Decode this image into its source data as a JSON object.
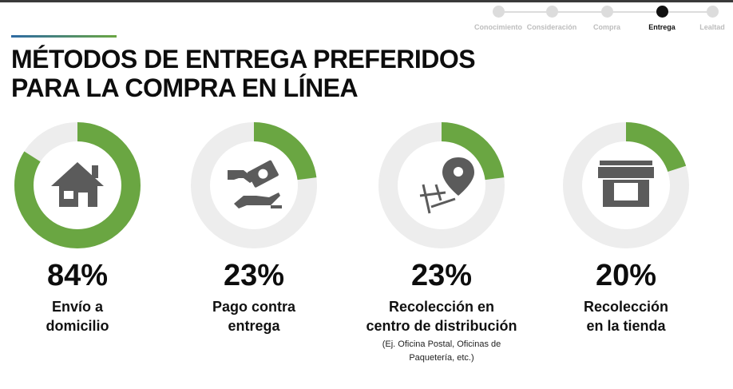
{
  "stepper": {
    "steps": [
      {
        "label": "Conocimiento",
        "active": false
      },
      {
        "label": "Consideración",
        "active": false
      },
      {
        "label": "Compra",
        "active": false
      },
      {
        "label": "Entrega",
        "active": true
      },
      {
        "label": "Lealtad",
        "active": false
      }
    ]
  },
  "title": {
    "line1": "MÉTODOS DE ENTREGA PREFERIDOS",
    "line2": "PARA LA COMPRA EN LÍNEA"
  },
  "colors": {
    "accent": "#6aa642",
    "track": "#ededed",
    "icon": "#5b5b5b"
  },
  "metrics": [
    {
      "value": 84,
      "percent_label": "84%",
      "label_lines": [
        "Envío a",
        "domicilio"
      ],
      "icon": "house-icon"
    },
    {
      "value": 23,
      "percent_label": "23%",
      "label_lines": [
        "Pago contra",
        "entrega"
      ],
      "icon": "cash-payment-icon"
    },
    {
      "value": 23,
      "percent_label": "23%",
      "label_lines": [
        "Recolección en",
        "centro de distribución"
      ],
      "note_lines": [
        "(Ej. Oficina Postal, Oficinas de",
        "Paquetería, etc.)"
      ],
      "icon": "map-pin-icon"
    },
    {
      "value": 20,
      "percent_label": "20%",
      "label_lines": [
        "Recolección",
        "en la tienda"
      ],
      "icon": "storefront-icon"
    }
  ]
}
